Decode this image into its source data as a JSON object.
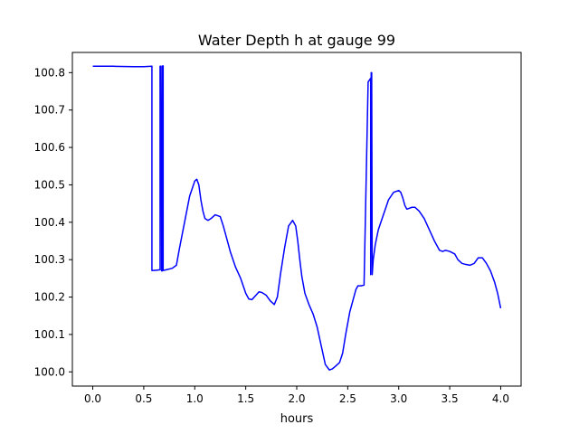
{
  "chart_data": {
    "type": "line",
    "title": "Water Depth h at gauge 99",
    "xlabel": "hours",
    "ylabel": "",
    "xlim": [
      -0.2,
      4.2
    ],
    "ylim": [
      99.962,
      100.854
    ],
    "xticks": [
      0.0,
      0.5,
      1.0,
      1.5,
      2.0,
      2.5,
      3.0,
      3.5,
      4.0
    ],
    "xtick_labels": [
      "0.0",
      "0.5",
      "1.0",
      "1.5",
      "2.0",
      "2.5",
      "3.0",
      "3.5",
      "4.0"
    ],
    "yticks": [
      100.0,
      100.1,
      100.2,
      100.3,
      100.4,
      100.5,
      100.6,
      100.7,
      100.8
    ],
    "ytick_labels": [
      "100.0",
      "100.1",
      "100.2",
      "100.3",
      "100.4",
      "100.5",
      "100.6",
      "100.7",
      "100.8"
    ],
    "grid": false,
    "series": [
      {
        "color": "#0000ff",
        "x": [
          0.0,
          0.2,
          0.4,
          0.5,
          0.58,
          0.58,
          0.6,
          0.66,
          0.66,
          0.67,
          0.675,
          0.68,
          0.685,
          0.69,
          0.69,
          0.72,
          0.78,
          0.82,
          0.85,
          0.9,
          0.95,
          1.0,
          1.02,
          1.04,
          1.06,
          1.08,
          1.1,
          1.13,
          1.16,
          1.2,
          1.25,
          1.28,
          1.3,
          1.35,
          1.4,
          1.45,
          1.5,
          1.53,
          1.56,
          1.6,
          1.63,
          1.66,
          1.7,
          1.74,
          1.78,
          1.81,
          1.84,
          1.88,
          1.92,
          1.96,
          1.99,
          2.01,
          2.03,
          2.05,
          2.08,
          2.12,
          2.16,
          2.2,
          2.24,
          2.28,
          2.32,
          2.35,
          2.38,
          2.42,
          2.45,
          2.48,
          2.52,
          2.55,
          2.58,
          2.6,
          2.63,
          2.66,
          2.7,
          2.725,
          2.725,
          2.73,
          2.735,
          2.74,
          2.745,
          2.75,
          2.77,
          2.8,
          2.85,
          2.9,
          2.95,
          3.0,
          3.02,
          3.04,
          3.06,
          3.08,
          3.1,
          3.13,
          3.16,
          3.2,
          3.25,
          3.3,
          3.35,
          3.4,
          3.43,
          3.46,
          3.5,
          3.55,
          3.58,
          3.62,
          3.66,
          3.7,
          3.74,
          3.78,
          3.82,
          3.86,
          3.9,
          3.94,
          3.97,
          4.0
        ],
        "y": [
          100.817,
          100.817,
          100.816,
          100.816,
          100.817,
          100.271,
          100.271,
          100.273,
          100.817,
          100.817,
          100.27,
          100.27,
          100.818,
          100.818,
          100.271,
          100.273,
          100.277,
          100.285,
          100.33,
          100.4,
          100.47,
          100.51,
          100.515,
          100.5,
          100.46,
          100.43,
          100.41,
          100.405,
          100.41,
          100.42,
          100.415,
          100.39,
          100.37,
          100.32,
          100.28,
          100.25,
          100.21,
          100.195,
          100.193,
          100.205,
          100.214,
          100.212,
          100.205,
          100.19,
          100.18,
          100.2,
          100.26,
          100.33,
          100.39,
          100.405,
          100.39,
          100.35,
          100.3,
          100.255,
          100.21,
          100.18,
          100.155,
          100.12,
          100.07,
          100.02,
          100.005,
          100.008,
          100.015,
          100.025,
          100.05,
          100.1,
          100.16,
          100.19,
          100.22,
          100.23,
          100.23,
          100.232,
          100.775,
          100.785,
          100.26,
          100.8,
          100.8,
          100.26,
          100.28,
          100.3,
          100.34,
          100.38,
          100.42,
          100.46,
          100.48,
          100.485,
          100.48,
          100.465,
          100.445,
          100.435,
          100.437,
          100.44,
          100.44,
          100.43,
          100.41,
          100.38,
          100.35,
          100.325,
          100.322,
          100.325,
          100.322,
          100.315,
          100.3,
          100.29,
          100.287,
          100.285,
          100.29,
          100.305,
          100.305,
          100.29,
          100.27,
          100.24,
          100.21,
          100.17
        ]
      }
    ]
  }
}
